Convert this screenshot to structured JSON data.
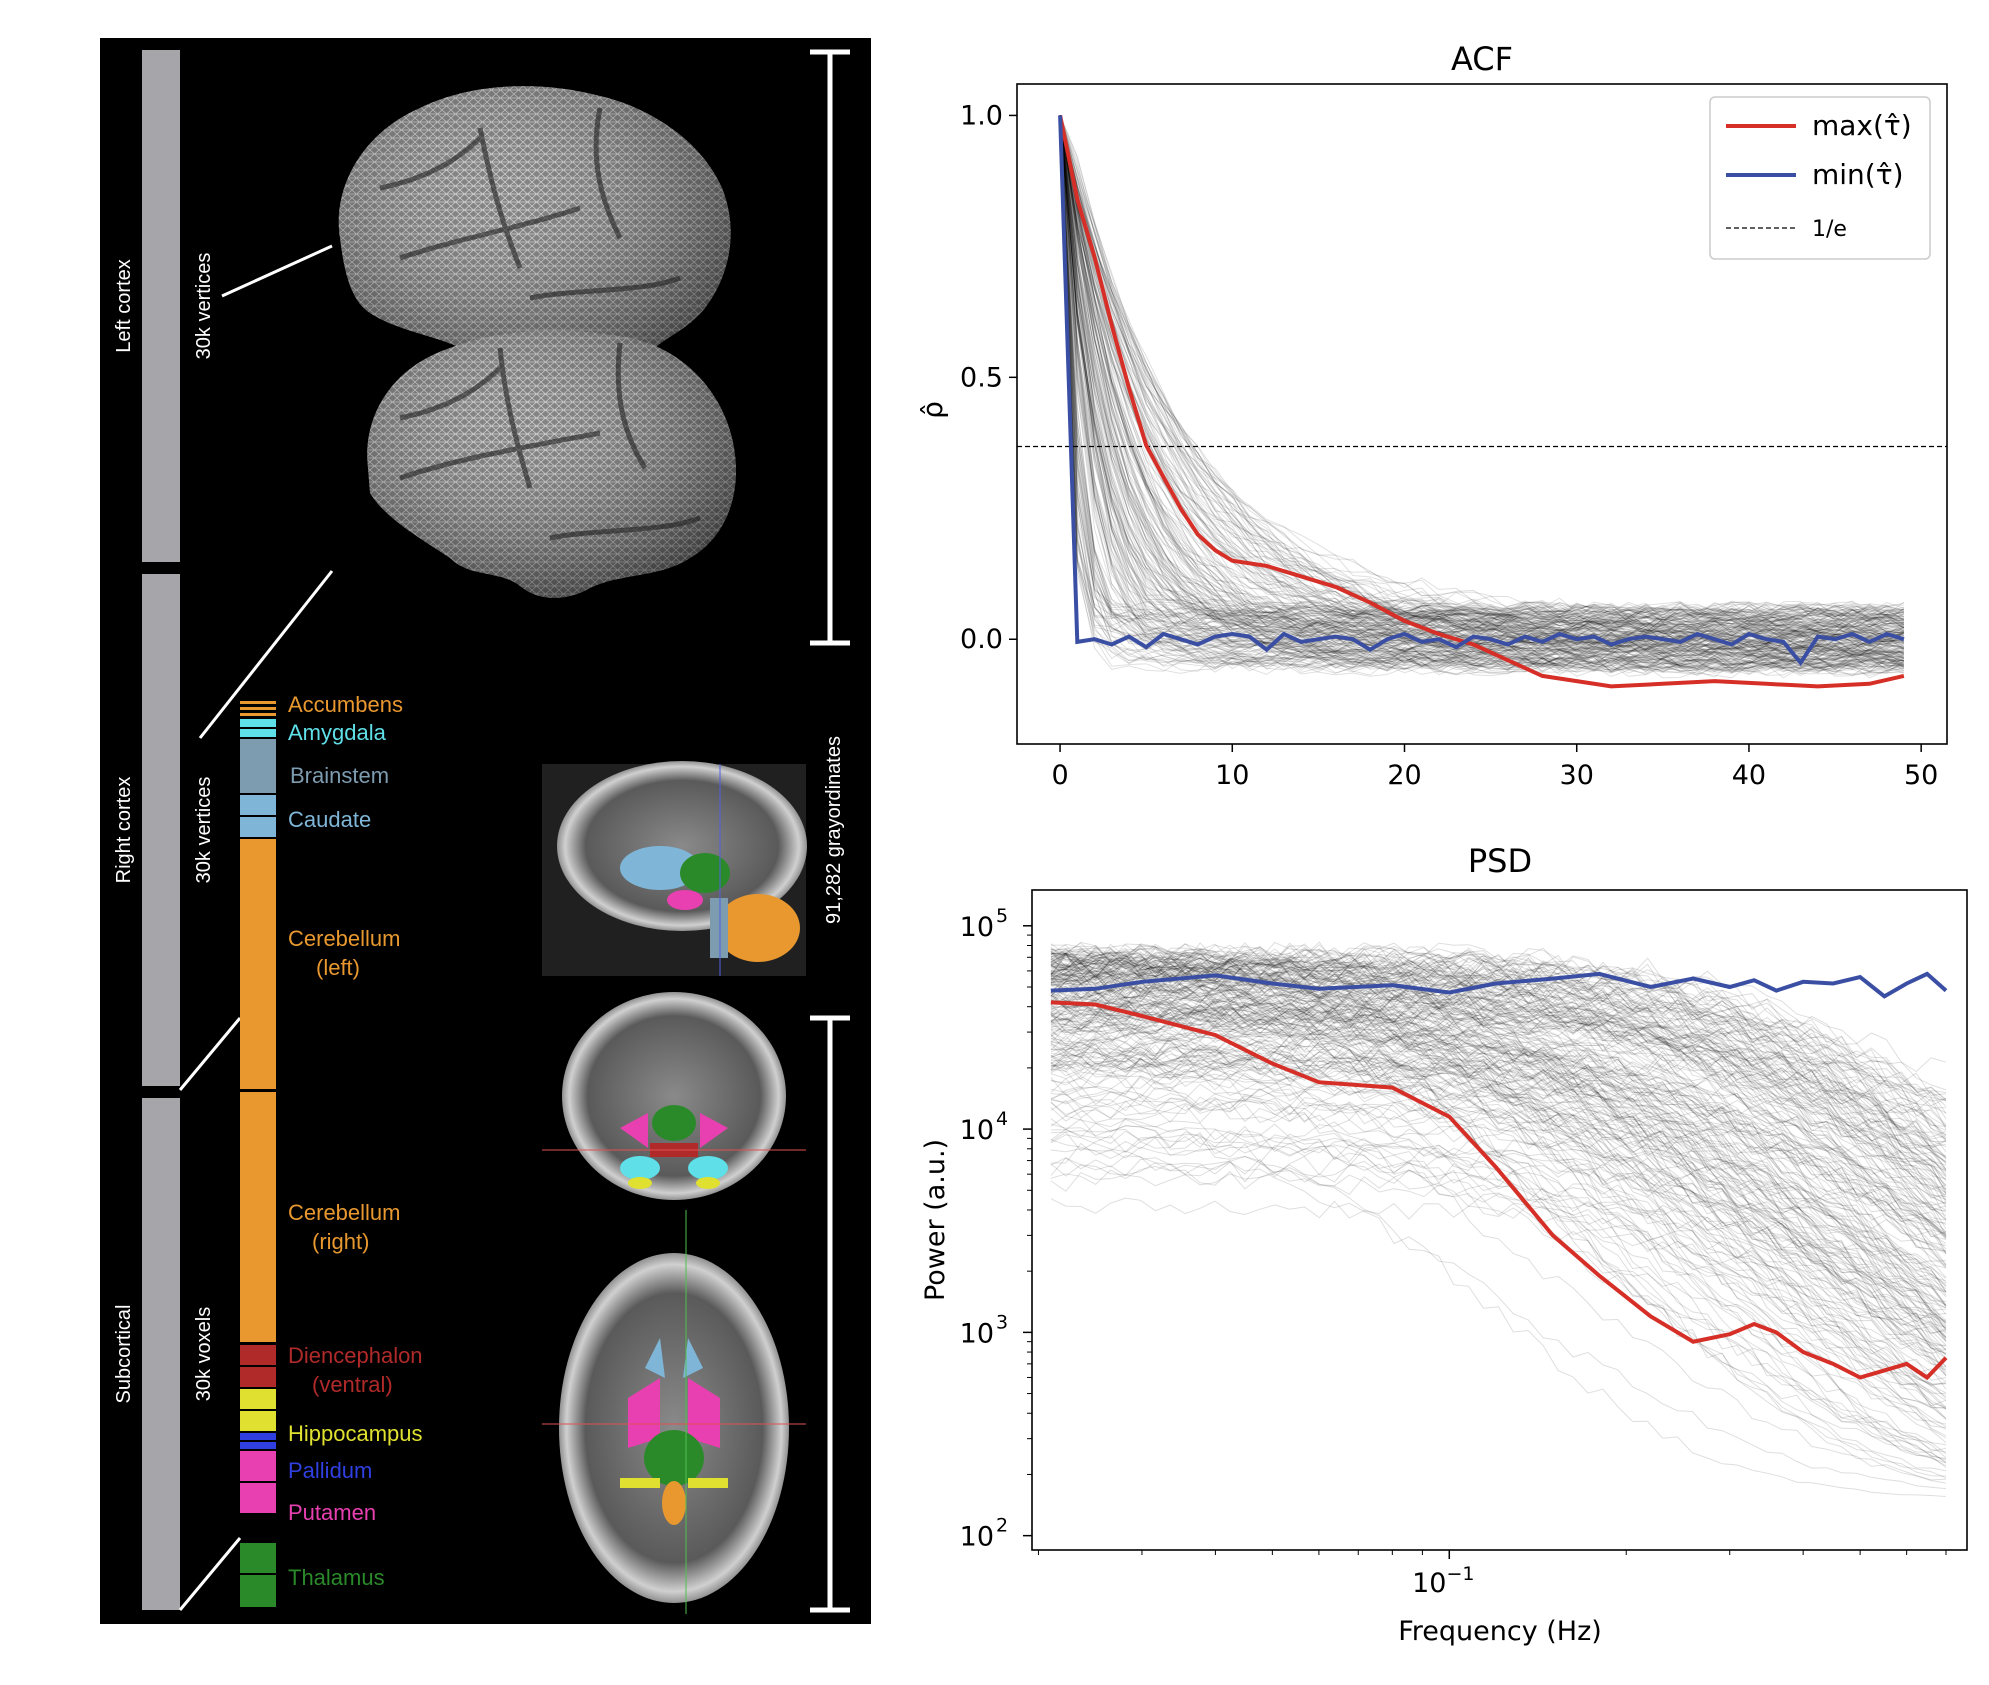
{
  "left_figure": {
    "sections": [
      {
        "name": "Left cortex",
        "count": "30k vertices"
      },
      {
        "name": "Right cortex",
        "count": "30k vertices"
      },
      {
        "name": "Subcortical",
        "count": "30k voxels"
      }
    ],
    "total_label": "91,282 grayordinates",
    "structures": [
      {
        "label": "Accumbens",
        "color": "#e8982f"
      },
      {
        "label": "Amygdala",
        "color": "#5fe0e8"
      },
      {
        "label": "Brainstem",
        "color": "#7d9cb0"
      },
      {
        "label": "Caudate",
        "color": "#7fb6d8"
      },
      {
        "label": "Cerebellum",
        "label2": "(left)",
        "color": "#e8982f"
      },
      {
        "label": "Cerebellum",
        "label2": "(right)",
        "color": "#e8982f"
      },
      {
        "label": "Diencephalon",
        "label2": "(ventral)",
        "color": "#b02a2a"
      },
      {
        "label": "Hippocampus",
        "color": "#e0e030"
      },
      {
        "label": "Pallidum",
        "color": "#3040e0"
      },
      {
        "label": "Putamen",
        "color": "#e840b0"
      },
      {
        "label": "Thalamus",
        "color": "#2a8a2a"
      }
    ]
  },
  "chart_data": [
    {
      "type": "line",
      "title": "ACF",
      "ylabel": "ρ̂",
      "xlim": [
        -2.5,
        51.5
      ],
      "ylim": [
        -0.2,
        1.06
      ],
      "xticks": [
        0,
        10,
        20,
        30,
        40,
        50
      ],
      "yticks": [
        0.0,
        0.5,
        1.0
      ],
      "xtick_labels": [
        "0",
        "10",
        "20",
        "30",
        "40",
        "50"
      ],
      "ytick_labels": [
        "0.0",
        "0.5",
        "1.0"
      ],
      "threshold": 0.368,
      "legend_position": "top-right",
      "legend": [
        {
          "label": "max(τ̂)",
          "color": "#d62f27",
          "style": "solid"
        },
        {
          "label": "min(τ̂)",
          "color": "#3a4fa3",
          "style": "solid"
        },
        {
          "label": "1/e",
          "color": "#000000",
          "style": "dashed"
        }
      ],
      "series": [
        {
          "name": "max(τ̂)",
          "color": "#d62f27",
          "x": [
            0,
            1,
            2,
            3,
            4,
            5,
            6,
            7,
            8,
            9,
            10,
            12,
            14,
            16,
            18,
            20,
            22,
            24,
            26,
            28,
            30,
            32,
            35,
            38,
            41,
            44,
            47,
            49
          ],
          "y": [
            1.0,
            0.84,
            0.73,
            0.6,
            0.48,
            0.37,
            0.31,
            0.25,
            0.2,
            0.17,
            0.15,
            0.14,
            0.12,
            0.1,
            0.07,
            0.035,
            0.01,
            -0.01,
            -0.04,
            -0.07,
            -0.08,
            -0.09,
            -0.085,
            -0.08,
            -0.085,
            -0.09,
            -0.085,
            -0.07
          ]
        },
        {
          "name": "min(τ̂)",
          "color": "#3a4fa3",
          "x": [
            0,
            1,
            2,
            3,
            4,
            5,
            6,
            7,
            8,
            9,
            10,
            11,
            12,
            13,
            14,
            15,
            16,
            17,
            18,
            19,
            20,
            21,
            22,
            23,
            24,
            25,
            26,
            27,
            28,
            29,
            30,
            31,
            32,
            33,
            34,
            35,
            36,
            37,
            38,
            39,
            40,
            41,
            42,
            43,
            44,
            45,
            46,
            47,
            48,
            49
          ],
          "y": [
            1.0,
            -0.005,
            0.0,
            -0.01,
            0.005,
            -0.015,
            0.01,
            0.0,
            -0.01,
            0.005,
            0.01,
            0.005,
            -0.02,
            0.01,
            -0.005,
            0.0,
            0.005,
            0.0,
            -0.02,
            0.0,
            0.01,
            -0.005,
            0.0,
            -0.015,
            0.005,
            0.0,
            -0.01,
            0.005,
            -0.005,
            0.01,
            0.0,
            0.005,
            -0.01,
            0.0,
            0.005,
            0.0,
            -0.005,
            0.01,
            0.0,
            -0.01,
            0.01,
            0.0,
            -0.005,
            -0.045,
            0.005,
            0.0,
            0.01,
            -0.005,
            0.01,
            0.0
          ]
        }
      ]
    },
    {
      "type": "line",
      "title": "PSD",
      "xlabel": "Frequency (Hz)",
      "ylabel": "Power (a.u.)",
      "xscale": "log",
      "yscale": "log",
      "xlim": [
        0.0195,
        0.76
      ],
      "ylim": [
        85,
        150000
      ],
      "xticks": [
        0.1
      ],
      "xtick_labels": [
        "10",
        "−1"
      ],
      "yticks": [
        100,
        1000,
        10000,
        100000
      ],
      "ytick_labels": [
        [
          "10",
          "2"
        ],
        [
          "10",
          "3"
        ],
        [
          "10",
          "4"
        ],
        [
          "10",
          "5"
        ]
      ],
      "series": [
        {
          "name": "max(τ̂)",
          "color": "#d62f27",
          "x": [
            0.021,
            0.025,
            0.03,
            0.04,
            0.05,
            0.06,
            0.08,
            0.1,
            0.12,
            0.15,
            0.18,
            0.22,
            0.26,
            0.3,
            0.33,
            0.36,
            0.4,
            0.45,
            0.5,
            0.55,
            0.6,
            0.65,
            0.7
          ],
          "y": [
            42000,
            41000,
            36000,
            29000,
            21000,
            17000,
            16000,
            11500,
            6500,
            3000,
            1900,
            1200,
            900,
            980,
            1100,
            1000,
            800,
            700,
            600,
            650,
            700,
            600,
            750
          ]
        },
        {
          "name": "min(τ̂)",
          "color": "#3a4fa3",
          "x": [
            0.021,
            0.025,
            0.03,
            0.04,
            0.05,
            0.06,
            0.08,
            0.1,
            0.12,
            0.15,
            0.18,
            0.22,
            0.26,
            0.3,
            0.33,
            0.36,
            0.4,
            0.45,
            0.5,
            0.55,
            0.6,
            0.65,
            0.7
          ],
          "y": [
            48000,
            49000,
            53000,
            57000,
            52000,
            49000,
            51000,
            47000,
            52000,
            55000,
            58000,
            50000,
            55000,
            50000,
            54000,
            48000,
            53000,
            52000,
            56000,
            45000,
            52000,
            58000,
            48000
          ]
        }
      ]
    }
  ]
}
